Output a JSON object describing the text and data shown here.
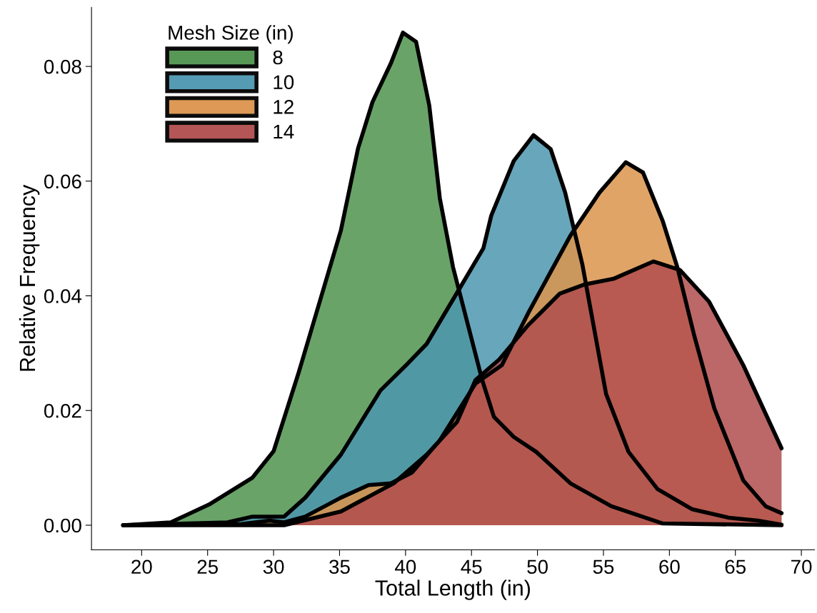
{
  "chart_data": {
    "type": "area",
    "xlabel": "Total Length (in)",
    "ylabel": "Relative Frequency",
    "legend_title": "Mesh Size (in)",
    "legend": "top left",
    "grid": false,
    "xlim": [
      16.2,
      71.0
    ],
    "xticks": [
      20,
      25,
      30,
      35,
      40,
      45,
      50,
      55,
      60,
      65,
      70
    ],
    "ylim": [
      -0.0043,
      0.0903
    ],
    "yticks": [
      {
        "value": 0,
        "label": "0.00"
      },
      {
        "value": 0.02,
        "label": "0.02"
      },
      {
        "value": 0.04,
        "label": "0.04"
      },
      {
        "value": 0.06,
        "label": "0.06"
      },
      {
        "value": 0.08,
        "label": "0.08"
      }
    ],
    "series": [
      {
        "name": "8",
        "color": "#4f934e",
        "x": [
          18.6,
          22.2,
          25.1,
          28.4,
          30.0,
          31.9,
          33.5,
          35.1,
          36.4,
          37.5,
          38.9,
          39.8,
          40.8,
          41.8,
          42.6,
          43.6,
          45.8,
          46.7,
          48.2,
          49.9,
          52.5,
          55.6,
          59.5,
          68.5
        ],
        "values": [
          0,
          0.0005,
          0.0036,
          0.0083,
          0.0129,
          0.0266,
          0.039,
          0.0514,
          0.0657,
          0.0738,
          0.0806,
          0.0859,
          0.0843,
          0.0732,
          0.057,
          0.045,
          0.0254,
          0.0189,
          0.0154,
          0.0128,
          0.0073,
          0.0033,
          0.0003,
          0
        ]
      },
      {
        "name": "10",
        "color": "#4d96b0",
        "x": [
          18.6,
          26.5,
          28.4,
          30.8,
          32.4,
          35.1,
          38.1,
          40.0,
          41.6,
          44.0,
          45.9,
          46.5,
          48.2,
          49.7,
          51.0,
          52.1,
          53.4,
          55.2,
          56.9,
          59.1,
          61.7,
          64.5,
          66.7,
          68.5
        ],
        "values": [
          0,
          0.0005,
          0.0015,
          0.0015,
          0.0048,
          0.0123,
          0.0235,
          0.0278,
          0.0316,
          0.0409,
          0.0483,
          0.054,
          0.0635,
          0.068,
          0.0656,
          0.058,
          0.0455,
          0.0229,
          0.0128,
          0.0063,
          0.0028,
          0.0013,
          0.0008,
          0.0001
        ]
      },
      {
        "name": "12",
        "color": "#dc944c",
        "x": [
          18.6,
          27.6,
          29.7,
          30.8,
          32.4,
          35.1,
          37.2,
          38.9,
          40.5,
          42.6,
          45.3,
          47.3,
          49.3,
          52.5,
          54.7,
          56.7,
          58.0,
          59.5,
          60.6,
          61.9,
          63.4,
          65.6,
          67.3,
          68.5
        ],
        "values": [
          0,
          0.0002,
          0.0008,
          0.0005,
          0.0015,
          0.0048,
          0.007,
          0.0073,
          0.0092,
          0.0148,
          0.0247,
          0.0279,
          0.037,
          0.0505,
          0.058,
          0.0633,
          0.0615,
          0.053,
          0.045,
          0.0329,
          0.0204,
          0.0078,
          0.0033,
          0.0021
        ]
      },
      {
        "name": "14",
        "color": "#b04e4e",
        "x": [
          18.6,
          30.8,
          35.1,
          39.1,
          41.6,
          43.9,
          45.3,
          47.1,
          49.3,
          51.7,
          53.6,
          55.8,
          58.8,
          60.8,
          63.0,
          65.6,
          68.5
        ],
        "values": [
          0,
          0,
          0.0024,
          0.0073,
          0.0123,
          0.018,
          0.0253,
          0.0289,
          0.0349,
          0.0404,
          0.042,
          0.043,
          0.046,
          0.0445,
          0.039,
          0.0279,
          0.0134
        ]
      }
    ]
  }
}
